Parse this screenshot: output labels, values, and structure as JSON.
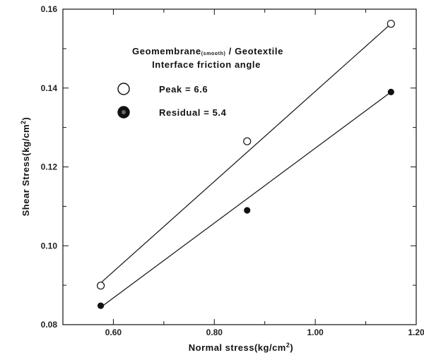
{
  "chart_data": {
    "type": "scatter",
    "xlabel": "Normal stress(kg/cm",
    "xlabel_sup": "2",
    "xlabel_tail": ")",
    "ylabel": "Shear Stress(kg/cm",
    "ylabel_sup": "2",
    "ylabel_tail": ")",
    "xlim": [
      0.5,
      1.2
    ],
    "ylim": [
      0.08,
      0.16
    ],
    "x_ticks": [
      0.6,
      0.8,
      1.0,
      1.2
    ],
    "x_tick_labels": [
      "0.60",
      "0.80",
      "1.00",
      "1.20"
    ],
    "y_ticks": [
      0.08,
      0.1,
      0.12,
      0.14,
      0.16
    ],
    "y_tick_labels": [
      "0.08",
      "0.10",
      "0.12",
      "0.14",
      "0.16"
    ],
    "grid": false,
    "legend": {
      "placement": "top-left",
      "title_line1_main": "Geomembrane",
      "title_line1_sub": "(smooth)",
      "title_line1_tail": " / Geotextile",
      "title_line2": "Interface friction angle"
    },
    "series": [
      {
        "name": "Peak = 6.6",
        "marker": "open-circle",
        "x": [
          0.575,
          0.865,
          1.15
        ],
        "y": [
          0.0899,
          0.1265,
          0.1563
        ],
        "fit": {
          "x": [
            0.575,
            1.15
          ],
          "y": [
            0.0906,
            0.1563
          ]
        }
      },
      {
        "name": "Residual = 5.4",
        "marker": "filled-circle",
        "x": [
          0.575,
          0.865,
          1.15
        ],
        "y": [
          0.0848,
          0.109,
          0.139
        ],
        "fit": {
          "x": [
            0.575,
            1.15
          ],
          "y": [
            0.0844,
            0.139
          ]
        }
      }
    ]
  },
  "colors": {
    "ink": "#111111",
    "background": "#ffffff"
  }
}
